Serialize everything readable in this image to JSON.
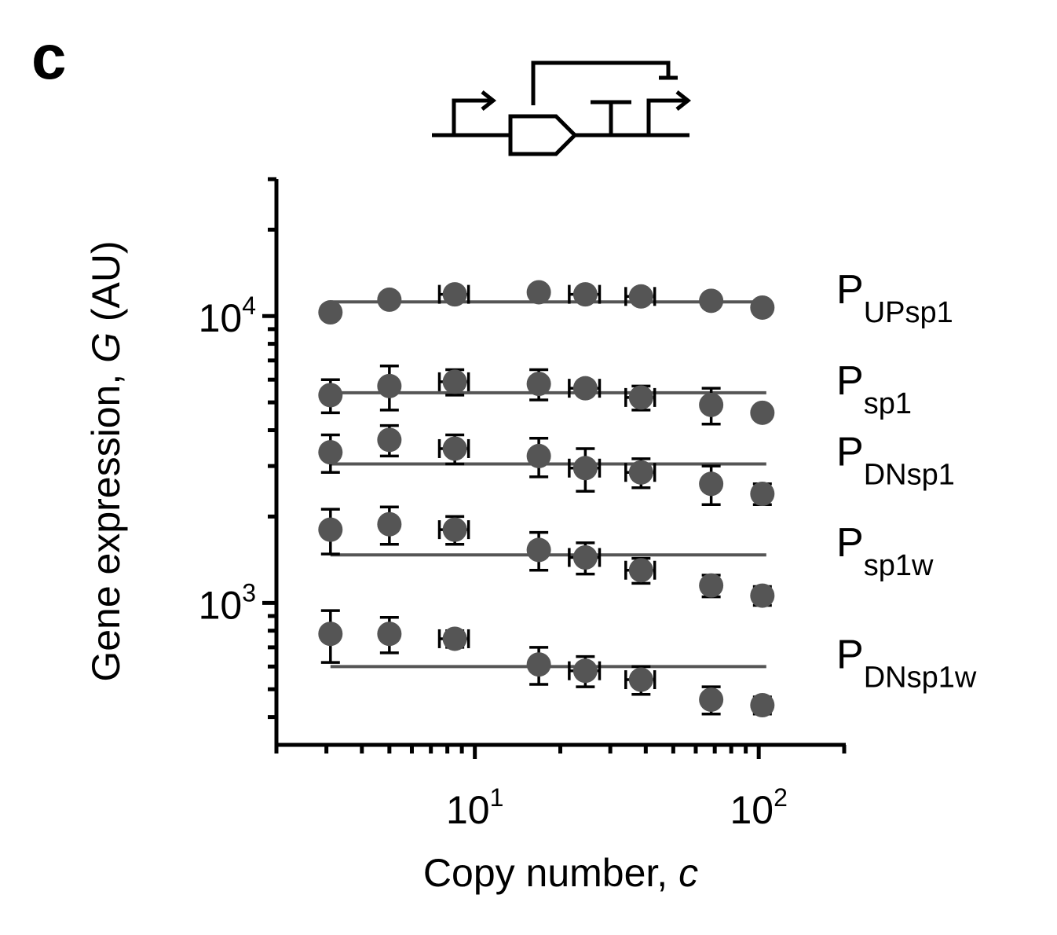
{
  "panel_label": "c",
  "chart_data": {
    "type": "scatter",
    "xlabel": "Copy number, ",
    "xlabel_var": "c",
    "ylabel": "Gene expression, ",
    "ylabel_var": "G",
    "ylabel_unit": " (AU)",
    "x_scale": "log",
    "y_scale": "log",
    "xlim": [
      2,
      200
    ],
    "ylim": [
      320,
      30000
    ],
    "x_ticks": [
      {
        "value": 10,
        "base": "10",
        "exp": "1"
      },
      {
        "value": 100,
        "base": "10",
        "exp": "2"
      }
    ],
    "y_ticks": [
      {
        "value": 1000,
        "base": "10",
        "exp": "3"
      },
      {
        "value": 10000,
        "base": "10",
        "exp": "4"
      }
    ],
    "x": [
      3.1,
      5.0,
      8.5,
      16.8,
      24.5,
      38.5,
      68.0,
      103.0
    ],
    "series": [
      {
        "label_main": "P",
        "label_sub": "UPsp1",
        "values": [
          10300,
          11400,
          11900,
          12100,
          11900,
          11700,
          11300,
          10700
        ],
        "y_err": [
          0,
          0,
          0,
          0,
          0,
          0,
          0,
          0
        ],
        "x_err": [
          0,
          0,
          1.0,
          0,
          3.0,
          4.5,
          0,
          0
        ],
        "fit": 11200
      },
      {
        "label_main": "P",
        "label_sub": "sp1",
        "values": [
          5300,
          5700,
          5900,
          5800,
          5600,
          5200,
          4900,
          4600
        ],
        "y_err": [
          700,
          1000,
          600,
          700,
          0,
          500,
          700,
          0
        ],
        "x_err": [
          0,
          0,
          1.0,
          0,
          3.0,
          4.5,
          0,
          0
        ],
        "fit": 5400
      },
      {
        "label_main": "P",
        "label_sub": "DNsp1",
        "values": [
          3350,
          3700,
          3450,
          3250,
          2950,
          2850,
          2600,
          2400
        ],
        "y_err": [
          500,
          450,
          400,
          500,
          500,
          330,
          400,
          200
        ],
        "x_err": [
          0,
          0,
          1.0,
          0,
          3.0,
          4.5,
          0,
          0
        ],
        "fit": 3050
      },
      {
        "label_main": "P",
        "label_sub": "sp1w",
        "values": [
          1800,
          1880,
          1800,
          1530,
          1440,
          1300,
          1150,
          1060
        ],
        "y_err": [
          320,
          280,
          200,
          230,
          180,
          130,
          100,
          80
        ],
        "x_err": [
          0,
          0,
          1.0,
          0,
          3.0,
          4.5,
          0,
          0
        ],
        "fit": 1470
      },
      {
        "label_main": "P",
        "label_sub": "DNsp1w",
        "values": [
          780,
          780,
          750,
          610,
          580,
          540,
          460,
          440
        ],
        "y_err": [
          160,
          110,
          50,
          90,
          70,
          60,
          50,
          30
        ],
        "x_err": [
          0,
          0,
          1.0,
          0,
          3.0,
          4.5,
          0,
          0
        ],
        "fit": 600
      }
    ]
  }
}
